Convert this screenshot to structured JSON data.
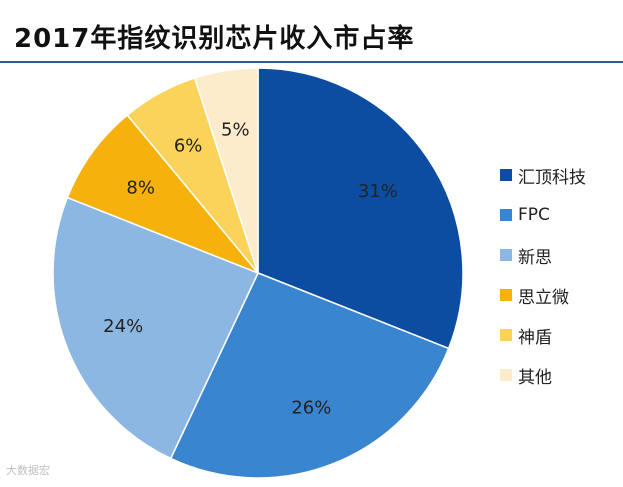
{
  "title": "2017年指纹识别芯片收入市占率",
  "watermark": "大数据宏",
  "colors": {
    "title_rule": "#2f5c98"
  },
  "chart_data": {
    "type": "pie",
    "title": "2017年指纹识别芯片收入市占率",
    "legend_position": "right",
    "start_angle_deg": 0,
    "direction": "clockwise",
    "slices": [
      {
        "label": "汇顶科技",
        "value": 31,
        "display": "31%",
        "color": "#0d4da1"
      },
      {
        "label": "FPC",
        "value": 26,
        "display": "26%",
        "color": "#3a85d0"
      },
      {
        "label": "新思",
        "value": 24,
        "display": "24%",
        "color": "#8db7e3"
      },
      {
        "label": "思立微",
        "value": 8,
        "display": "8%",
        "color": "#f6b10d"
      },
      {
        "label": "神盾",
        "value": 6,
        "display": "6%",
        "color": "#fcd35a"
      },
      {
        "label": "其他",
        "value": 5,
        "display": "5%",
        "color": "#fdeccb"
      }
    ]
  }
}
